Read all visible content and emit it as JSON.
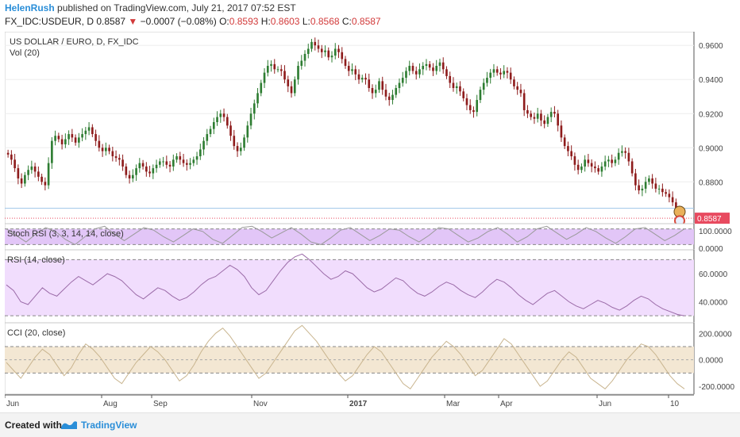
{
  "header": {
    "author": "HelenRush",
    "published_text": "published on TradingView.com, July 21, 2017 07:52 EST",
    "symbol_line": "FX_IDC:USDEUR, D",
    "last": "0.8587",
    "down_arrow": "▼",
    "change": "−0.0007 (−0.08%)",
    "o_label": "O:",
    "o_val": "0.8593",
    "h_label": "H:",
    "h_val": "0.8603",
    "l_label": "L:",
    "l_val": "0.8568",
    "c_label": "C:",
    "c_val": "0.8587"
  },
  "footer": {
    "created_with": "Created with",
    "brand": "TradingView",
    "logo_icon": "tradingview-logo-icon"
  },
  "colors": {
    "up": "#53b987",
    "down": "#eb4d5c",
    "candle_body_up": "#2e7d32",
    "candle_body_down": "#8e1c1c",
    "stoch_band": "#e2c6f7",
    "rsi_band": "#f1ddfd",
    "rsi_line": "#9b6ba8",
    "cci_band": "#f3e7d3",
    "cci_line": "#c9b58f",
    "price_label": "#e84a5f"
  },
  "chart_data": [
    {
      "type": "candlestick",
      "title": "US DOLLAR / EURO, D, FX_IDC",
      "subtitle": "Vol (20)",
      "y_ticks": [
        "0.9600",
        "0.9400",
        "0.9200",
        "0.9000",
        "0.8800"
      ],
      "ylim": [
        0.8555,
        0.968
      ],
      "last_price_label": "0.8587",
      "x_ticks": [
        "Jun",
        "Aug",
        "Sep",
        "Nov",
        "2017",
        "Mar",
        "Apr",
        "Jun",
        "10"
      ],
      "series": [
        {
          "name": "close",
          "values": [
            0.896,
            0.893,
            0.888,
            0.882,
            0.879,
            0.884,
            0.887,
            0.889,
            0.886,
            0.883,
            0.88,
            0.878,
            0.891,
            0.904,
            0.907,
            0.905,
            0.902,
            0.905,
            0.908,
            0.906,
            0.903,
            0.906,
            0.908,
            0.91,
            0.912,
            0.908,
            0.904,
            0.9,
            0.898,
            0.9,
            0.898,
            0.895,
            0.894,
            0.893,
            0.889,
            0.884,
            0.882,
            0.884,
            0.888,
            0.891,
            0.889,
            0.886,
            0.885,
            0.888,
            0.89,
            0.892,
            0.892,
            0.89,
            0.889,
            0.893,
            0.895,
            0.893,
            0.891,
            0.89,
            0.891,
            0.893,
            0.895,
            0.899,
            0.904,
            0.908,
            0.911,
            0.915,
            0.918,
            0.92,
            0.918,
            0.913,
            0.907,
            0.901,
            0.898,
            0.9,
            0.906,
            0.913,
            0.92,
            0.926,
            0.932,
            0.938,
            0.944,
            0.948,
            0.949,
            0.946,
            0.946,
            0.945,
            0.94,
            0.936,
            0.932,
            0.94,
            0.948,
            0.951,
            0.955,
            0.958,
            0.962,
            0.96,
            0.958,
            0.956,
            0.957,
            0.953,
            0.954,
            0.958,
            0.956,
            0.952,
            0.948,
            0.945,
            0.946,
            0.943,
            0.94,
            0.941,
            0.94,
            0.935,
            0.932,
            0.934,
            0.939,
            0.934,
            0.93,
            0.928,
            0.931,
            0.935,
            0.938,
            0.941,
            0.945,
            0.948,
            0.945,
            0.943,
            0.946,
            0.948,
            0.949,
            0.947,
            0.945,
            0.948,
            0.95,
            0.946,
            0.942,
            0.938,
            0.935,
            0.936,
            0.933,
            0.929,
            0.925,
            0.922,
            0.921,
            0.928,
            0.934,
            0.938,
            0.941,
            0.944,
            0.946,
            0.944,
            0.943,
            0.945,
            0.944,
            0.94,
            0.936,
            0.934,
            0.932,
            0.922,
            0.92,
            0.918,
            0.917,
            0.92,
            0.916,
            0.914,
            0.918,
            0.921,
            0.92,
            0.913,
            0.906,
            0.901,
            0.898,
            0.895,
            0.89,
            0.887,
            0.889,
            0.893,
            0.891,
            0.889,
            0.888,
            0.886,
            0.889,
            0.892,
            0.893,
            0.891,
            0.893,
            0.897,
            0.898,
            0.897,
            0.892,
            0.885,
            0.878,
            0.875,
            0.876,
            0.88,
            0.882,
            0.879,
            0.876,
            0.876,
            0.874,
            0.873,
            0.871,
            0.868,
            0.863,
            0.86,
            0.8587
          ]
        }
      ]
    },
    {
      "type": "line",
      "title": "Stoch RSI (3, 3, 14, 14, close)",
      "y_ticks": [
        "100.0000",
        "0.0000"
      ],
      "ylim": [
        0,
        100
      ],
      "band": [
        20,
        80
      ],
      "series": [
        {
          "name": "",
          "values": [
            80,
            55,
            30,
            60,
            85,
            70,
            40,
            20,
            50,
            80,
            90,
            60,
            35,
            60,
            85,
            75,
            50,
            30,
            55,
            80,
            70,
            40,
            25,
            55,
            85,
            90,
            70,
            45,
            65,
            85,
            60,
            30,
            20,
            45,
            75,
            85,
            60,
            35,
            55,
            80,
            75,
            50,
            30,
            55,
            85,
            80,
            55,
            30,
            45,
            70,
            85,
            60,
            30,
            50,
            80,
            90,
            65,
            40,
            60,
            85,
            70,
            45,
            25,
            50,
            80,
            85,
            60,
            35,
            55,
            80
          ]
        }
      ]
    },
    {
      "type": "line",
      "title": "RSI (14, close)",
      "y_ticks": [
        "60.0000",
        "40.0000"
      ],
      "ylim": [
        25,
        77
      ],
      "band": [
        30,
        70
      ],
      "series": [
        {
          "name": "",
          "values": [
            52,
            48,
            40,
            38,
            44,
            50,
            46,
            44,
            49,
            54,
            58,
            55,
            52,
            56,
            60,
            58,
            55,
            50,
            45,
            42,
            46,
            50,
            48,
            44,
            41,
            43,
            47,
            52,
            56,
            58,
            62,
            66,
            63,
            58,
            50,
            45,
            48,
            55,
            62,
            68,
            72,
            74,
            70,
            65,
            60,
            56,
            58,
            62,
            60,
            55,
            50,
            47,
            49,
            53,
            57,
            55,
            50,
            46,
            44,
            47,
            51,
            54,
            52,
            48,
            45,
            43,
            47,
            52,
            56,
            54,
            50,
            45,
            41,
            38,
            42,
            46,
            48,
            44,
            40,
            37,
            35,
            38,
            41,
            39,
            36,
            34,
            37,
            41,
            44,
            42,
            38,
            35,
            33,
            31,
            30
          ]
        }
      ]
    },
    {
      "type": "line",
      "title": "CCI (20, close)",
      "y_ticks": [
        "200.0000",
        "0.0000",
        "-200.0000"
      ],
      "ylim": [
        -260,
        280
      ],
      "band": [
        -100,
        100
      ],
      "series": [
        {
          "name": "",
          "values": [
            -20,
            -80,
            -140,
            -60,
            20,
            80,
            40,
            -40,
            -120,
            -60,
            40,
            120,
            80,
            20,
            -60,
            -140,
            -180,
            -100,
            -20,
            40,
            100,
            60,
            0,
            -80,
            -160,
            -120,
            -40,
            60,
            140,
            200,
            240,
            180,
            100,
            20,
            -60,
            -140,
            -100,
            -20,
            60,
            140,
            220,
            260,
            200,
            140,
            60,
            -20,
            -100,
            -160,
            -120,
            -40,
            40,
            100,
            60,
            -20,
            -100,
            -180,
            -220,
            -140,
            -60,
            20,
            80,
            140,
            100,
            40,
            -40,
            -120,
            -80,
            0,
            80,
            160,
            120,
            40,
            -40,
            -120,
            -200,
            -160,
            -80,
            0,
            60,
            20,
            -60,
            -140,
            -180,
            -220,
            -160,
            -80,
            0,
            60,
            120,
            100,
            40,
            -40,
            -120,
            -180,
            -220
          ]
        }
      ]
    }
  ]
}
